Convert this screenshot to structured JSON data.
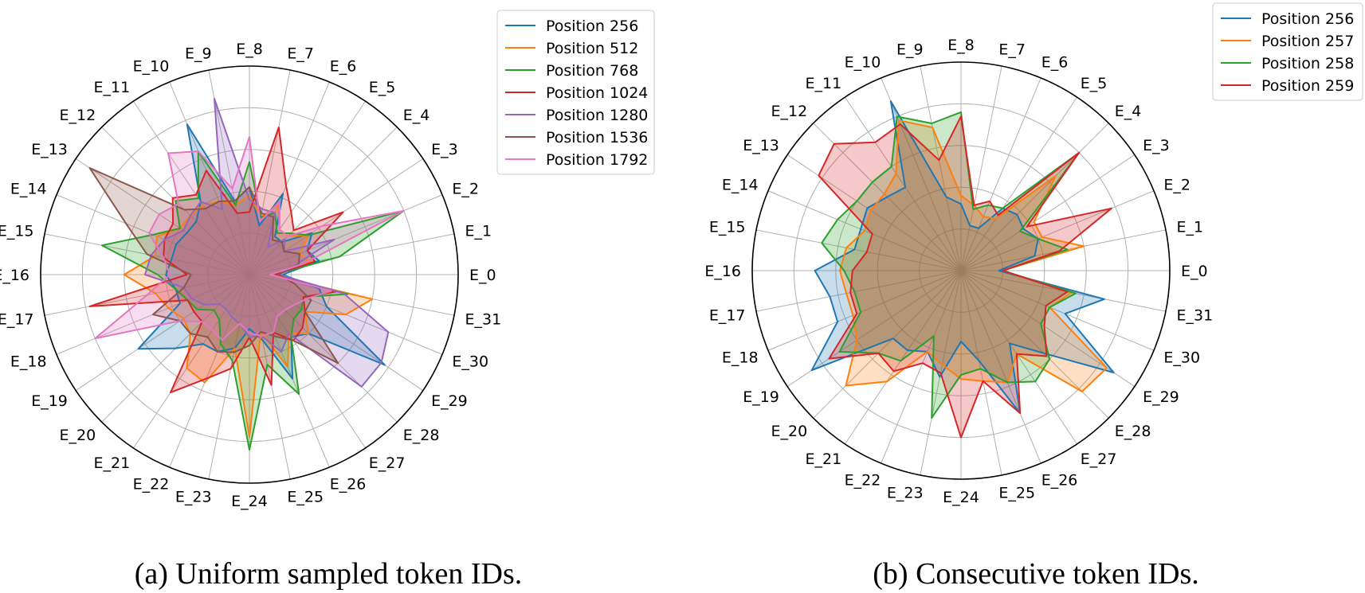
{
  "chart_data": [
    {
      "type": "radar",
      "caption": "(a) Uniform sampled token IDs.",
      "axes": [
        "E_0",
        "E_1",
        "E_2",
        "E_3",
        "E_4",
        "E_5",
        "E_6",
        "E_7",
        "E_8",
        "E_9",
        "E_10",
        "E_11",
        "E_12",
        "E_13",
        "E_14",
        "E_15",
        "E_16",
        "E_17",
        "E_18",
        "E_19",
        "E_20",
        "E_21",
        "E_22",
        "E_23",
        "E_24",
        "E_25",
        "E_26",
        "E_27",
        "E_28",
        "E_29",
        "E_30",
        "E_31"
      ],
      "rlim": [
        0,
        5
      ],
      "grid": true,
      "legend_position": "top-right",
      "series": [
        {
          "name": "Position 256",
          "color": "#1f77b4",
          "values": [
            0.8,
            1.7,
            1.5,
            1.8,
            1.1,
            1.1,
            2.1,
            1.2,
            2.1,
            1.8,
            3.9,
            2.1,
            1.8,
            1.8,
            1.9,
            1.9,
            2.0,
            1.8,
            1.8,
            3.2,
            2.5,
            2.0,
            2.0,
            1.8,
            1.3,
            1.6,
            2.7,
            1.8,
            2.0,
            3.9,
            2.0,
            1.7
          ]
        },
        {
          "name": "Position 512",
          "color": "#ff7f0e",
          "values": [
            0.5,
            1.5,
            1.3,
            1.7,
            1.3,
            1.3,
            1.8,
            1.4,
            1.9,
            1.7,
            1.9,
            2.0,
            2.0,
            2.0,
            2.4,
            2.3,
            3.0,
            2.3,
            2.1,
            1.9,
            2.0,
            2.7,
            2.8,
            1.8,
            3.9,
            1.4,
            2.4,
            1.7,
            2.0,
            1.6,
            2.5,
            3.0
          ]
        },
        {
          "name": "Position 768",
          "color": "#2ca02c",
          "values": [
            0.6,
            2.2,
            4.0,
            1.7,
            1.4,
            1.2,
            1.6,
            1.4,
            2.7,
            1.7,
            3.2,
            2.2,
            2.5,
            2.0,
            2.5,
            3.6,
            2.2,
            1.8,
            1.6,
            1.5,
            1.2,
            1.3,
            1.8,
            2.1,
            4.2,
            2.2,
            3.1,
            1.8,
            1.5,
            1.5,
            1.4,
            2.4
          ]
        },
        {
          "name": "Position 1024",
          "color": "#d62728",
          "values": [
            0.6,
            1.6,
            1.5,
            2.7,
            1.5,
            1.8,
            2.3,
            3.6,
            1.5,
            1.5,
            2.7,
            2.3,
            2.6,
            2.2,
            2.2,
            2.1,
            1.5,
            3.9,
            1.6,
            1.6,
            1.6,
            3.4,
            2.7,
            2.3,
            1.5,
            2.7,
            1.5,
            1.9,
            1.8,
            1.6,
            1.4,
            2.1
          ]
        },
        {
          "name": "Position 1280",
          "color": "#9467bd",
          "values": [
            0.7,
            1.1,
            2.2,
            1.0,
            1.2,
            0.8,
            1.6,
            1.6,
            1.8,
            4.3,
            1.7,
            2.1,
            2.0,
            1.9,
            2.2,
            2.4,
            2.5,
            1.6,
            1.5,
            1.3,
            1.0,
            1.0,
            1.1,
            1.2,
            1.5,
            1.5,
            2.0,
            1.7,
            3.8,
            3.8,
            3.6,
            2.3
          ]
        },
        {
          "name": "Position 1536",
          "color": "#8c564b",
          "values": [
            0.7,
            1.2,
            1.3,
            1.0,
            1.1,
            1.0,
            1.5,
            1.5,
            2.1,
            1.8,
            1.9,
            1.9,
            2.2,
            4.6,
            3.2,
            2.5,
            1.4,
            1.6,
            2.5,
            2.0,
            2.0,
            1.8,
            2.0,
            1.9,
            1.7,
            1.4,
            1.6,
            1.9,
            3.0,
            1.6,
            1.6,
            1.1
          ]
        },
        {
          "name": "Position 1792",
          "color": "#e377c2",
          "values": [
            0.5,
            1.3,
            4.0,
            2.1,
            1.3,
            1.3,
            1.9,
            1.3,
            3.3,
            2.1,
            3.2,
            3.5,
            2.4,
            2.6,
            2.6,
            2.1,
            1.9,
            2.5,
            4.0,
            2.0,
            1.6,
            1.6,
            1.7,
            1.2,
            1.4,
            1.5,
            1.5,
            1.2,
            1.2,
            1.3,
            1.5,
            2.0
          ]
        }
      ],
      "fill_opacity": 0.25
    },
    {
      "type": "radar",
      "caption": "(b) Consecutive token IDs.",
      "axes": [
        "E_0",
        "E_1",
        "E_2",
        "E_3",
        "E_4",
        "E_5",
        "E_6",
        "E_7",
        "E_8",
        "E_9",
        "E_10",
        "E_11",
        "E_12",
        "E_13",
        "E_14",
        "E_15",
        "E_16",
        "E_17",
        "E_18",
        "E_19",
        "E_20",
        "E_21",
        "E_22",
        "E_23",
        "E_24",
        "E_25",
        "E_26",
        "E_27",
        "E_28",
        "E_29",
        "E_30",
        "E_31"
      ],
      "rlim": [
        0,
        5
      ],
      "grid": true,
      "legend_position": "top-right",
      "series": [
        {
          "name": "Position 256",
          "color": "#1f77b4",
          "values": [
            0.9,
            1.8,
            2.0,
            1.8,
            1.9,
            1.8,
            1.1,
            1.1,
            1.6,
            1.8,
            4.4,
            2.4,
            2.5,
            2.7,
            2.6,
            2.6,
            3.5,
            3.2,
            3.2,
            4.3,
            2.3,
            2.3,
            2.1,
            2.6,
            1.7,
            2.2,
            3.7,
            2.1,
            2.8,
            4.4,
            2.7,
            3.5
          ]
        },
        {
          "name": "Position 257",
          "color": "#ff7f0e",
          "values": [
            1.0,
            3.0,
            2.1,
            2.1,
            3.2,
            1.5,
            1.4,
            1.6,
            1.8,
            3.5,
            3.9,
            2.8,
            2.6,
            2.6,
            2.5,
            2.8,
            2.9,
            2.8,
            2.8,
            3.0,
            3.9,
            3.2,
            2.1,
            2.3,
            2.6,
            2.7,
            2.9,
            2.4,
            4.1,
            4.2,
            2.3,
            2.7
          ]
        },
        {
          "name": "Position 258",
          "color": "#2ca02c",
          "values": [
            1.0,
            2.6,
            2.0,
            1.7,
            4.0,
            1.8,
            1.7,
            1.5,
            3.8,
            3.6,
            4.0,
            3.0,
            3.0,
            3.0,
            3.2,
            3.4,
            2.8,
            2.6,
            2.6,
            3.5,
            2.8,
            2.6,
            1.7,
            3.6,
            2.5,
            2.4,
            2.9,
            3.2,
            3.0,
            2.3,
            2.3,
            2.8
          ]
        },
        {
          "name": "Position 259",
          "color": "#d62728",
          "values": [
            1.0,
            2.4,
            3.9,
            1.9,
            4.0,
            1.6,
            1.8,
            1.6,
            3.7,
            2.7,
            3.8,
            3.7,
            4.3,
            4.1,
            2.3,
            2.3,
            2.6,
            2.7,
            2.7,
            3.8,
            2.8,
            2.9,
            2.4,
            2.5,
            4.0,
            2.7,
            3.7,
            2.4,
            2.9,
            2.4,
            2.2,
            2.6
          ]
        }
      ],
      "fill_opacity": 0.25
    }
  ]
}
